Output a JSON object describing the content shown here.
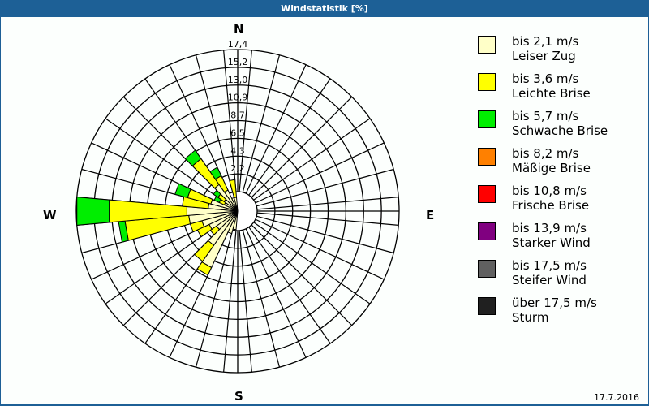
{
  "window": {
    "title": "Windstatistik [%]"
  },
  "compass": {
    "n": "N",
    "e": "E",
    "s": "S",
    "w": "W"
  },
  "footer": {
    "date": "17.7.2016"
  },
  "legend": [
    {
      "range": "bis 2,1 m/s",
      "name": "Leiser Zug",
      "color": "#ffffc8"
    },
    {
      "range": "bis 3,6 m/s",
      "name": "Leichte Brise",
      "color": "#ffff00"
    },
    {
      "range": "bis 5,7 m/s",
      "name": "Schwache Brise",
      "color": "#00ee00"
    },
    {
      "range": "bis 8,2 m/s",
      "name": "Mäßige Brise",
      "color": "#ff8000"
    },
    {
      "range": "bis 10,8 m/s",
      "name": "Frische Brise",
      "color": "#ff0000"
    },
    {
      "range": "bis 13,9 m/s",
      "name": "Starker Wind",
      "color": "#800080"
    },
    {
      "range": "bis 17,5 m/s",
      "name": "Steifer Wind",
      "color": "#606060"
    },
    {
      "range": "über 17,5 m/s",
      "name": "Sturm",
      "color": "#202020"
    }
  ],
  "chart_data": {
    "type": "polar-stacked-bar",
    "title": "Windstatistik [%]",
    "rings": [
      "2,2",
      "4,3",
      "6,5",
      "8,7",
      "10,9",
      "13,0",
      "15,2",
      "17,4"
    ],
    "rmax": 17.4,
    "sector_width_deg": 10,
    "classes": [
      "bis 2,1 m/s",
      "bis 3,6 m/s",
      "bis 5,7 m/s",
      "bis 8,2 m/s",
      "bis 10,8 m/s",
      "bis 13,9 m/s",
      "bis 17,5 m/s",
      "über 17,5 m/s"
    ],
    "series_cumulative_note": "cumulative percent per direction (light, yellow, green)",
    "directions": [
      {
        "dir": 190,
        "cum": [
          2.0,
          2.0,
          2.0
        ]
      },
      {
        "dir": 200,
        "cum": [
          2.5,
          2.5,
          2.5
        ]
      },
      {
        "dir": 210,
        "cum": [
          6.7,
          7.6,
          7.6
        ]
      },
      {
        "dir": 220,
        "cum": [
          4.5,
          6.6,
          6.6
        ]
      },
      {
        "dir": 230,
        "cum": [
          2.8,
          3.6,
          3.6
        ]
      },
      {
        "dir": 240,
        "cum": [
          3.4,
          4.8,
          4.8
        ]
      },
      {
        "dir": 250,
        "cum": [
          4.0,
          5.3,
          5.3
        ]
      },
      {
        "dir": 260,
        "cum": [
          5.3,
          12.2,
          12.9
        ]
      },
      {
        "dir": 270,
        "cum": [
          5.5,
          13.9,
          17.4
        ]
      },
      {
        "dir": 280,
        "cum": [
          3.2,
          6.0,
          6.0
        ]
      },
      {
        "dir": 290,
        "cum": [
          3.0,
          5.6,
          7.0
        ]
      },
      {
        "dir": 300,
        "cum": [
          1.6,
          2.2,
          2.8
        ]
      },
      {
        "dir": 310,
        "cum": [
          1.8,
          2.6,
          3.2
        ]
      },
      {
        "dir": 320,
        "cum": [
          3.5,
          6.9,
          8.0
        ]
      },
      {
        "dir": 330,
        "cum": [
          2.5,
          4.2,
          5.2
        ]
      },
      {
        "dir": 340,
        "cum": [
          1.5,
          1.5,
          1.5
        ]
      },
      {
        "dir": 350,
        "cum": [
          1.5,
          3.4,
          3.4
        ]
      }
    ]
  }
}
